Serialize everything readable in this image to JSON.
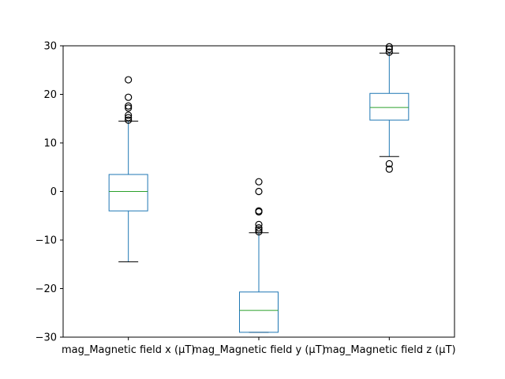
{
  "chart_data": {
    "type": "boxplot",
    "title": "",
    "xlabel": "",
    "ylabel": "",
    "ylim": [
      -30,
      30
    ],
    "yticks": [
      -30,
      -20,
      -10,
      0,
      10,
      20,
      30
    ],
    "ytick_labels": [
      "−30",
      "−20",
      "−10",
      "0",
      "10",
      "20",
      "30"
    ],
    "grid": false,
    "categories": [
      "mag_Magnetic field x (µT)",
      "mag_Magnetic field y (µT)",
      "mag_Magnetic field z (µT)"
    ],
    "boxes": [
      {
        "name": "mag_Magnetic field x (µT)",
        "whisker_low": -14.5,
        "q1": -4.0,
        "median": 0.0,
        "q3": 3.5,
        "whisker_high": 14.5,
        "outliers": [
          14.7,
          15.2,
          15.7,
          17.2,
          17.6,
          19.4,
          23.0
        ]
      },
      {
        "name": "mag_Magnetic field y (µT)",
        "whisker_low": -29.0,
        "q1": -29.0,
        "median": -24.5,
        "q3": -20.7,
        "whisker_high": -8.5,
        "outliers": [
          -8.3,
          -7.9,
          -7.5,
          -6.8,
          -4.2,
          -4.0,
          0.0,
          2.0
        ]
      },
      {
        "name": "mag_Magnetic field z (µT)",
        "whisker_low": 7.2,
        "q1": 14.7,
        "median": 17.3,
        "q3": 20.2,
        "whisker_high": 28.5,
        "outliers": [
          4.6,
          5.7,
          28.7,
          29.3,
          29.8
        ]
      }
    ],
    "colors": {
      "box": "#1f77b4",
      "median": "#2ca02c",
      "flier": "#000000",
      "axes": "#000000",
      "background": "#ffffff"
    }
  }
}
